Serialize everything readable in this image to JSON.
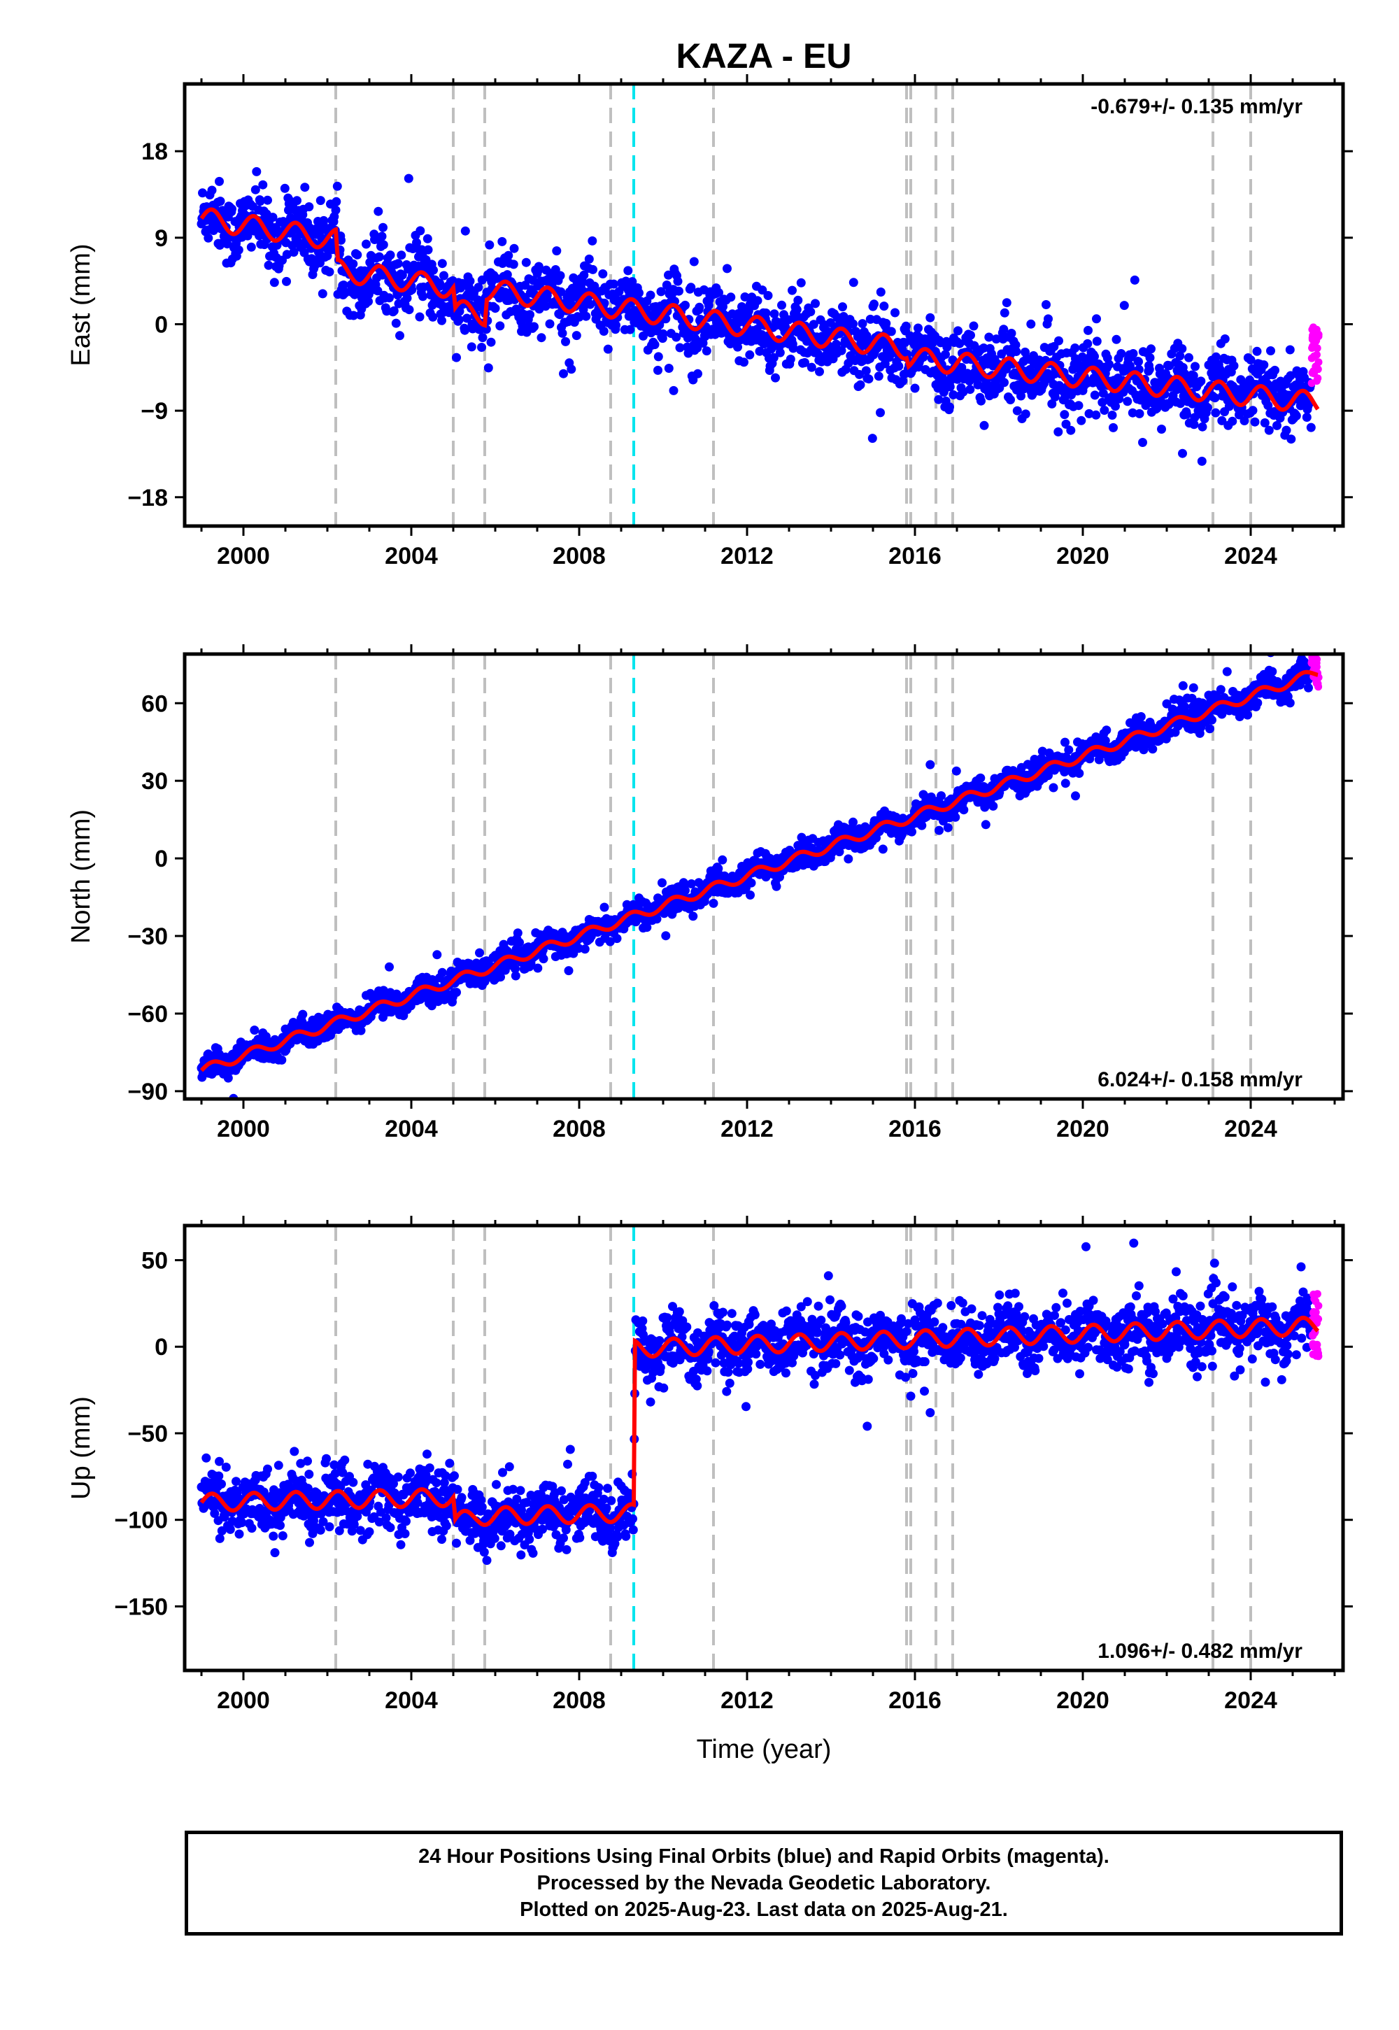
{
  "title": "KAZA - EU",
  "colors": {
    "final_orbits": "#0000ff",
    "rapid_orbits": "#ff00ff",
    "model": "#ff0000",
    "antenna_change": "#bfbfbf",
    "earthquake": "#00e5ee"
  },
  "chart_data": [
    {
      "type": "scatter",
      "name": "East",
      "ylabel": "East (mm)",
      "xlabel": "",
      "xlim": [
        1998.6,
        2026.2
      ],
      "ylim": [
        -21,
        25
      ],
      "yticks": [
        18,
        9,
        0,
        -9,
        -18
      ],
      "xticks": [
        2000,
        2004,
        2008,
        2012,
        2016,
        2020,
        2024
      ],
      "rate_label": "-0.679+/- 0.135 mm/yr",
      "rate_position": "top-right",
      "equipment_changes": [
        2002.2,
        2005.0,
        2005.75,
        2008.75,
        2011.2,
        2015.8,
        2015.9,
        2016.5,
        2016.9,
        2023.1,
        2024.0
      ],
      "earthquakes": [
        2009.3
      ],
      "model_trend": [
        [
          1999.0,
          11.0
        ],
        [
          2002.2,
          8.8
        ],
        [
          2002.25,
          5.6
        ],
        [
          2005.0,
          3.8
        ],
        [
          2005.05,
          1.4
        ],
        [
          2005.75,
          1.0
        ],
        [
          2005.8,
          3.6
        ],
        [
          2015.8,
          -2.5
        ],
        [
          2015.85,
          -3.5
        ],
        [
          2025.6,
          -8.2
        ]
      ],
      "seasonal_amplitude": 1.1,
      "scatter_sigma": 1.8,
      "rapid_range": [
        2025.45,
        2025.62,
        -7,
        1
      ]
    },
    {
      "type": "scatter",
      "name": "North",
      "ylabel": "North (mm)",
      "xlabel": "",
      "xlim": [
        1998.6,
        2026.2
      ],
      "ylim": [
        -93,
        79
      ],
      "yticks": [
        60,
        30,
        0,
        -30,
        -60,
        -90
      ],
      "xticks": [
        2000,
        2004,
        2008,
        2012,
        2016,
        2020,
        2024
      ],
      "rate_label": "6.024+/- 0.158 mm/yr",
      "rate_position": "bottom-right",
      "equipment_changes": [
        2002.2,
        2005.0,
        2005.75,
        2008.75,
        2011.2,
        2015.8,
        2015.9,
        2016.5,
        2016.9,
        2023.1,
        2024.0
      ],
      "earthquakes": [
        2009.3
      ],
      "model_trend": [
        [
          1999.0,
          -82.0
        ],
        [
          2025.6,
          72.0
        ]
      ],
      "seasonal_amplitude": 1.8,
      "scatter_sigma": 2.6,
      "rapid_range": [
        2025.45,
        2025.62,
        66,
        78
      ]
    },
    {
      "type": "scatter",
      "name": "Up",
      "ylabel": "Up (mm)",
      "xlabel": "Time (year)",
      "xlim": [
        1998.6,
        2026.2
      ],
      "ylim": [
        -187,
        70
      ],
      "yticks": [
        50,
        0,
        -50,
        -100,
        -150
      ],
      "xticks": [
        2000,
        2004,
        2008,
        2012,
        2016,
        2020,
        2024
      ],
      "rate_label": "1.096+/- 0.482 mm/yr",
      "rate_position": "bottom-right",
      "equipment_changes": [
        2002.2,
        2005.0,
        2005.75,
        2008.75,
        2011.2,
        2015.8,
        2015.9,
        2016.5,
        2016.9,
        2023.1,
        2024.0
      ],
      "earthquakes": [
        2009.3
      ],
      "model_trend": [
        [
          1999.0,
          -90.0
        ],
        [
          2005.0,
          -87.0
        ],
        [
          2005.05,
          -101.0
        ],
        [
          2005.6,
          -98.0
        ],
        [
          2009.3,
          -96.0
        ],
        [
          2009.33,
          -1.0
        ],
        [
          2025.6,
          12.0
        ]
      ],
      "seasonal_amplitude": 5.0,
      "scatter_sigma": 9.0,
      "rapid_range": [
        2025.45,
        2025.62,
        -6,
        32
      ]
    }
  ],
  "footer": {
    "line1": "24 Hour Positions Using Final Orbits (blue) and Rapid Orbits (magenta).",
    "line2": "Processed by the Nevada Geodetic Laboratory.",
    "line3": "Plotted on 2025-Aug-23. Last data on 2025-Aug-21."
  }
}
